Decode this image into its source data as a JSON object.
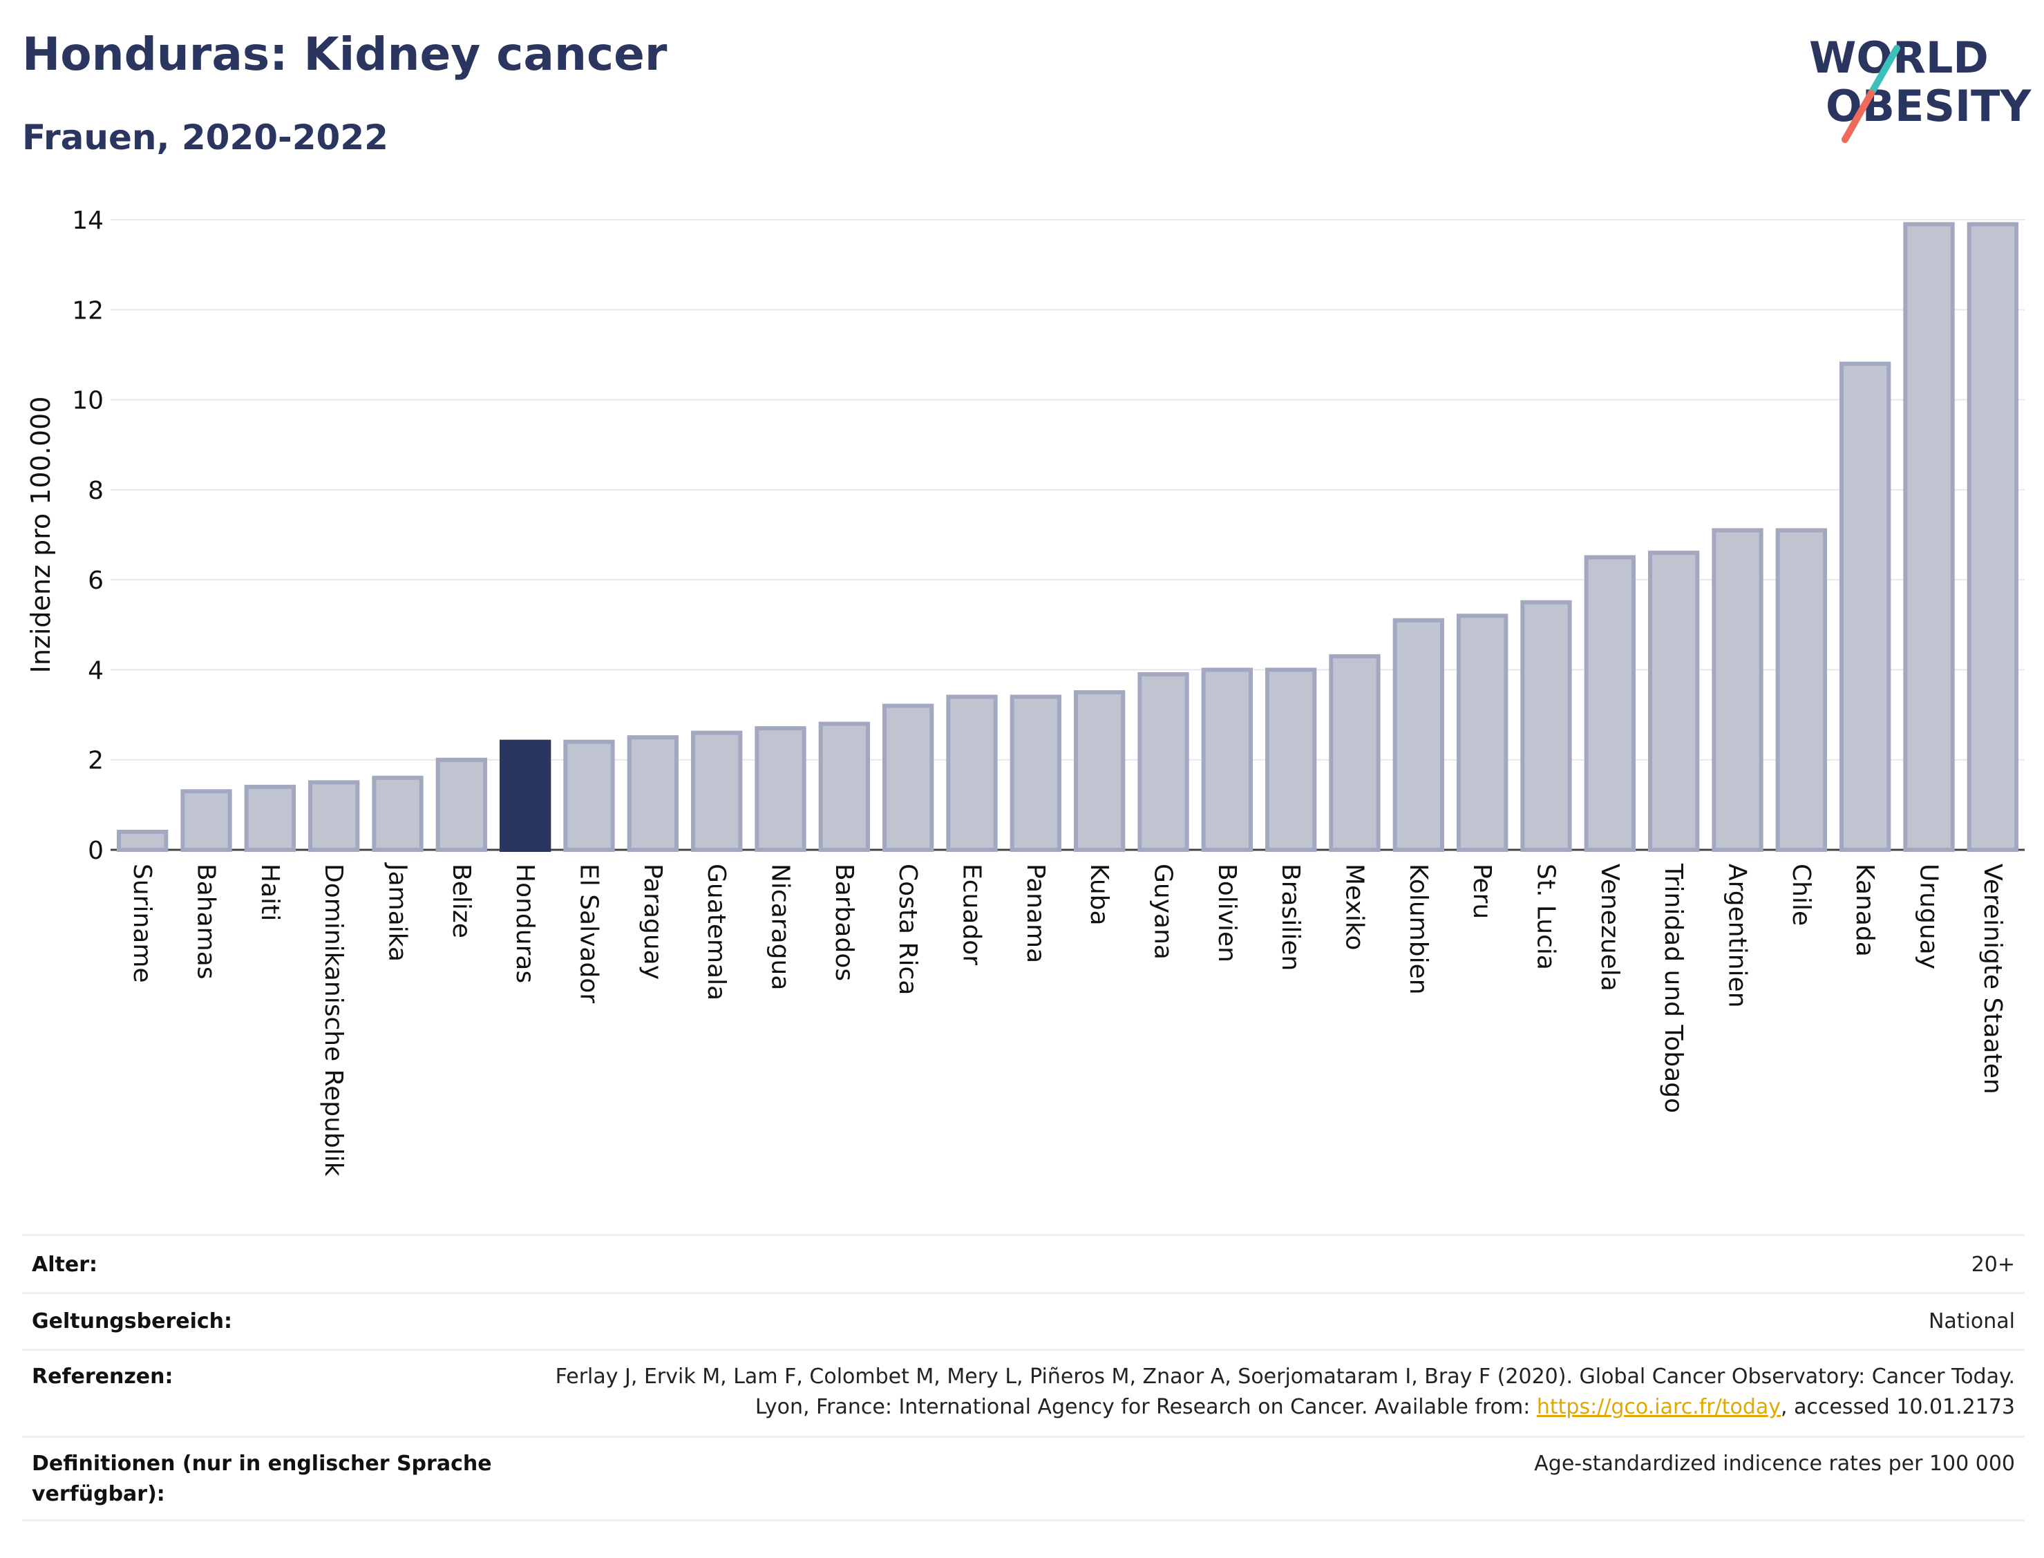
{
  "header": {
    "title": "Honduras: Kidney cancer",
    "subtitle": "Frauen, 2020-2022",
    "logo_line1": "WORLD",
    "logo_line2": "OBESITY"
  },
  "colors": {
    "highlight": "#2a3560",
    "bar_fill": "#c0c4d1",
    "bar_stroke": "#a2a8bf",
    "grid": "#e6e8ee",
    "logo_text": "#2a3560",
    "logo_teal": "#3cc0b8",
    "logo_coral": "#ee6b5b",
    "link": "#e0a800"
  },
  "chart_data": {
    "type": "bar",
    "title": "Honduras: Kidney cancer",
    "subtitle": "Frauen, 2020-2022",
    "xlabel": "",
    "ylabel": "Inzidenz pro 100.000",
    "ylim": [
      0,
      14
    ],
    "yticks": [
      0,
      2,
      4,
      6,
      8,
      10,
      12,
      14
    ],
    "grid": true,
    "highlight_category": "Honduras",
    "categories": [
      "Suriname",
      "Bahamas",
      "Haiti",
      "Dominikanische Republik",
      "Jamaika",
      "Belize",
      "Honduras",
      "El Salvador",
      "Paraguay",
      "Guatemala",
      "Nicaragua",
      "Barbados",
      "Costa Rica",
      "Ecuador",
      "Panama",
      "Kuba",
      "Guyana",
      "Bolivien",
      "Brasilien",
      "Mexiko",
      "Kolumbien",
      "Peru",
      "St. Lucia",
      "Venezuela",
      "Trinidad und Tobago",
      "Argentinien",
      "Chile",
      "Kanada",
      "Uruguay",
      "Vereinigte Staaten"
    ],
    "values": [
      0.4,
      1.3,
      1.4,
      1.5,
      1.6,
      2.0,
      2.4,
      2.4,
      2.5,
      2.6,
      2.7,
      2.8,
      3.2,
      3.4,
      3.4,
      3.5,
      3.9,
      4.0,
      4.0,
      4.3,
      5.1,
      5.2,
      5.5,
      6.5,
      6.6,
      7.1,
      7.1,
      10.8,
      13.9,
      13.9
    ]
  },
  "info": {
    "rows": [
      {
        "label": "Alter:",
        "value": "20+"
      },
      {
        "label": "Geltungsbereich:",
        "value": "National"
      },
      {
        "label": "Referenzen:",
        "value_part1": "Ferlay J, Ervik M, Lam F, Colombet M, Mery L, Piñeros M, Znaor A, Soerjomataram I, Bray F (2020). Global Cancer Observatory: Cancer Today. Lyon, France: International Agency for Research on Cancer. Available from: ",
        "link": "https://gco.iarc.fr/today",
        "value_part2": ", accessed 10.01.2173"
      },
      {
        "label": "Definitionen (nur in englischer Sprache verfügbar):",
        "value": "Age-standardized indicence rates per 100 000"
      }
    ]
  }
}
